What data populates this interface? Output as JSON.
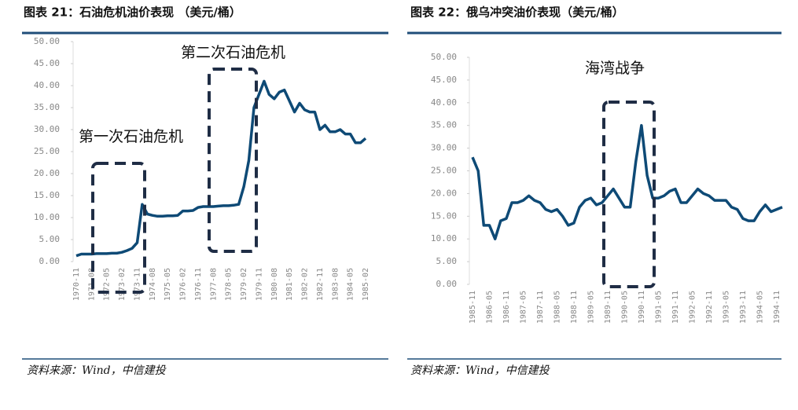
{
  "chart_data": [
    {
      "type": "line",
      "title": "图表 21：石油危机油价表现 （美元/桶）",
      "source": "资料来源：Wind，中信建投",
      "annotations": [
        "第一次石油危机",
        "第二次石油危机"
      ],
      "categories": [
        "1970-11",
        null,
        null,
        "1971-08",
        null,
        null,
        "1972-05",
        null,
        null,
        "1973-02",
        null,
        null,
        "1973-11",
        null,
        null,
        "1974-08",
        null,
        null,
        "1975-05",
        null,
        null,
        "1976-02",
        null,
        null,
        "1976-11",
        null,
        null,
        "1977-08",
        null,
        null,
        "1978-05",
        null,
        null,
        "1979-02",
        null,
        null,
        "1979-11",
        null,
        null,
        "1980-08",
        null,
        null,
        "1981-05",
        null,
        null,
        "1982-02",
        null,
        null,
        "1982-11",
        null,
        null,
        "1983-08",
        null,
        null,
        "1984-05",
        null,
        null,
        "1985-02"
      ],
      "values": [
        1.3,
        1.7,
        1.7,
        1.7,
        1.8,
        1.8,
        1.8,
        1.9,
        1.9,
        2.1,
        2.5,
        3.0,
        4.3,
        13,
        10.8,
        10.5,
        10.3,
        10.3,
        10.4,
        10.4,
        10.5,
        11.5,
        11.5,
        11.6,
        12.3,
        12.5,
        12.5,
        12.5,
        12.6,
        12.7,
        12.7,
        12.8,
        13.0,
        17,
        23,
        35,
        38,
        41,
        38,
        37,
        38.5,
        39,
        36.5,
        34,
        36,
        34.5,
        34,
        34,
        30,
        31,
        29.5,
        29.5,
        30,
        29,
        29,
        27,
        27,
        28
      ],
      "color": "#0e4a76",
      "ylim": [
        0,
        50
      ],
      "yticks": [
        {
          "value": 0,
          "label": "0.00"
        },
        {
          "value": 5,
          "label": "5.00"
        },
        {
          "value": 10,
          "label": "10.00"
        },
        {
          "value": 15,
          "label": "15.00"
        },
        {
          "value": 20,
          "label": "20.00"
        },
        {
          "value": 25,
          "label": "25.00"
        },
        {
          "value": 30,
          "label": "30.00"
        },
        {
          "value": 35,
          "label": "35.00"
        },
        {
          "value": 40,
          "label": "40.00"
        },
        {
          "value": 45,
          "label": "45.00"
        },
        {
          "value": 50,
          "label": "50.00"
        }
      ]
    },
    {
      "type": "line",
      "title": "图表 22：俄乌冲突油价表现（美元/桶）",
      "source": "资料来源：Wind，中信建投",
      "annotations": [
        "海湾战争"
      ],
      "categories": [
        "1985-11",
        null,
        null,
        "1986-05",
        null,
        null,
        "1986-11",
        null,
        null,
        "1987-05",
        null,
        null,
        "1987-11",
        null,
        null,
        "1988-05",
        null,
        null,
        "1988-11",
        null,
        null,
        "1989-05",
        null,
        null,
        "1989-11",
        null,
        null,
        "1990-05",
        null,
        null,
        "1990-11",
        null,
        null,
        "1991-05",
        null,
        null,
        "1991-11",
        null,
        null,
        "1992-05",
        null,
        null,
        "1992-11",
        null,
        null,
        "1993-05",
        null,
        null,
        "1993-11",
        null,
        null,
        "1994-05",
        null,
        null,
        "1994-11",
        null
      ],
      "values": [
        28,
        25,
        13,
        13,
        10,
        14,
        14.5,
        18,
        18,
        18.5,
        19.5,
        18.5,
        18,
        16.5,
        16,
        16.5,
        15,
        13,
        13.5,
        17,
        18.5,
        19,
        17.5,
        18,
        19.5,
        21,
        19,
        17,
        17,
        27,
        35,
        24,
        19,
        19,
        19.5,
        20.5,
        21,
        18,
        18,
        19.5,
        21,
        20,
        19.5,
        18.5,
        18.5,
        18.5,
        17,
        16.5,
        14.5,
        14,
        14,
        16,
        17.5,
        16,
        16.5,
        17
      ],
      "color": "#0e4a76",
      "ylim": [
        0,
        50
      ],
      "yticks": [
        {
          "value": 0,
          "label": "0.00"
        },
        {
          "value": 5,
          "label": "5.00"
        },
        {
          "value": 10,
          "label": "10.00"
        },
        {
          "value": 15,
          "label": "15.00"
        },
        {
          "value": 20,
          "label": "20.00"
        },
        {
          "value": 25,
          "label": "25.00"
        },
        {
          "value": 30,
          "label": "30.00"
        },
        {
          "value": 35,
          "label": "35.00"
        },
        {
          "value": 40,
          "label": "40.00"
        },
        {
          "value": 45,
          "label": "45.00"
        },
        {
          "value": 50,
          "label": "50.00"
        }
      ]
    }
  ]
}
